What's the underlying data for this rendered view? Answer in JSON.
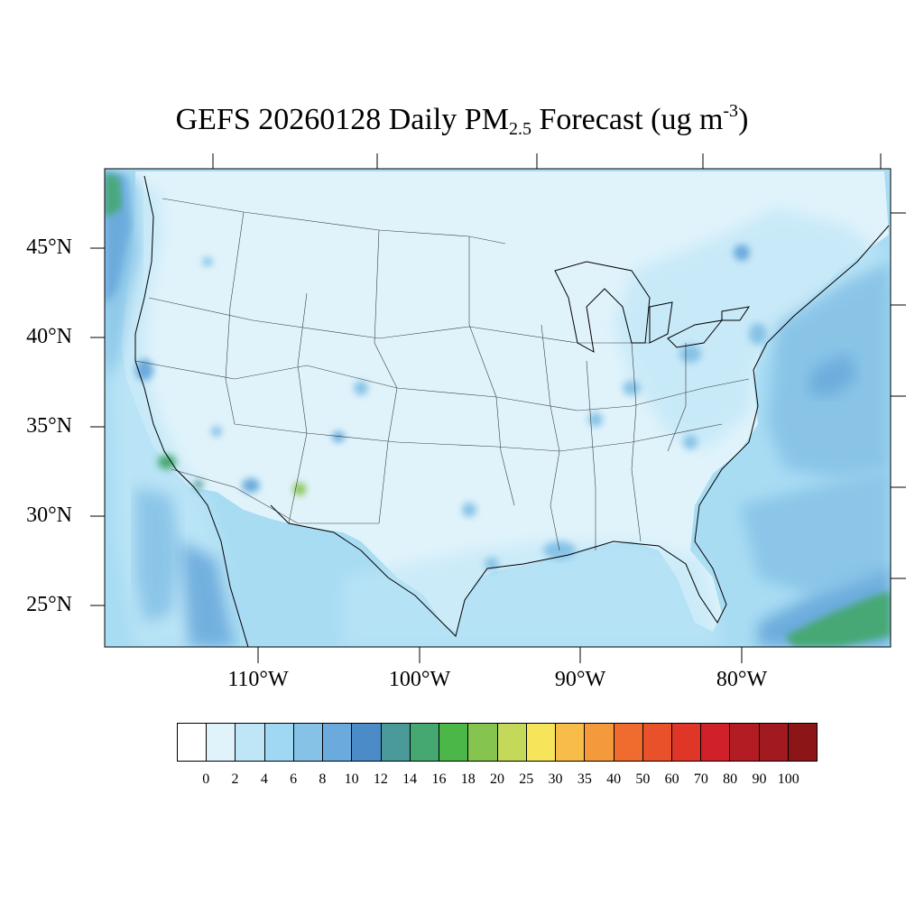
{
  "title": {
    "main": "GEFS 20260128 Daily PM",
    "subscript": "2.5",
    "suffix": " Forecast (ug m",
    "superscript": "-3",
    "close": ")"
  },
  "lat_labels": [
    "45°N",
    "40°N",
    "35°N",
    "30°N",
    "25°N"
  ],
  "lon_labels": [
    "110°W",
    "100°W",
    "90°W",
    "80°W"
  ],
  "colorbar": {
    "labels": [
      "0",
      "2",
      "4",
      "6",
      "8",
      "10",
      "12",
      "14",
      "16",
      "18",
      "20",
      "25",
      "30",
      "35",
      "40",
      "50",
      "60",
      "70",
      "80",
      "90",
      "100"
    ],
    "colors": [
      "#ffffff",
      "#e0f3fb",
      "#bfe6f7",
      "#a0d8f3",
      "#86c2e6",
      "#6aaadc",
      "#4b8cc8",
      "#4a9a9a",
      "#44a870",
      "#4bb749",
      "#86c450",
      "#c4d95a",
      "#f6e55a",
      "#f7bd48",
      "#f59a3c",
      "#f06c2e",
      "#e8512a",
      "#e03627",
      "#d0202a",
      "#b41c24",
      "#a01a20",
      "#8c1518"
    ]
  },
  "legend_colors": {
    "ocean": "#a8dcf3",
    "land_low": "#e0f3fb",
    "land_mid": "#bfe6f7",
    "high": "#86c2e6",
    "higher": "#6aaadc",
    "highest": "#4b8cc8",
    "green": "#44a870"
  }
}
